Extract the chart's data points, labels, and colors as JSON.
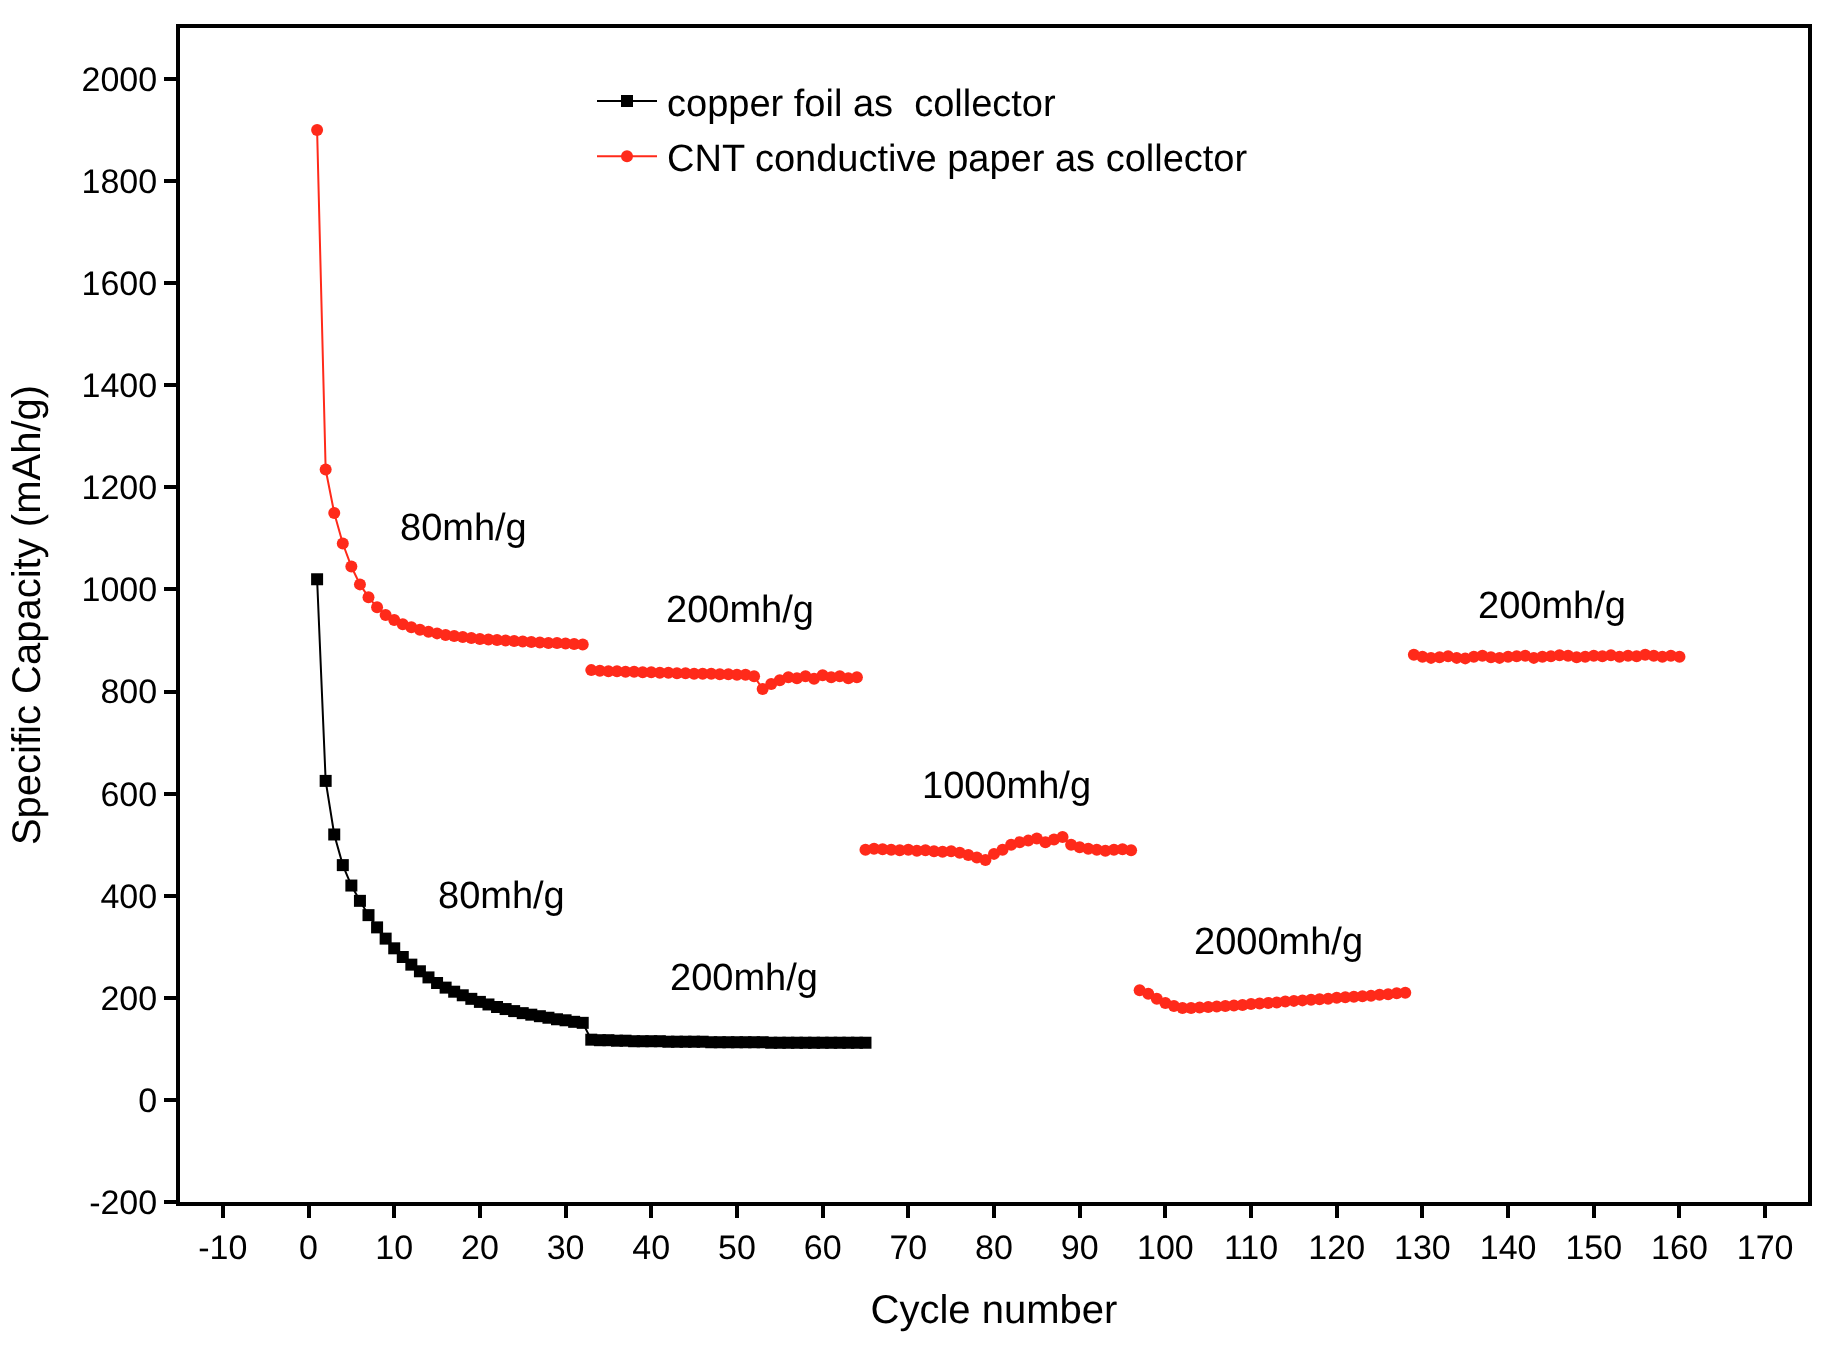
{
  "chart_data": {
    "type": "line",
    "xlabel": "Cycle number",
    "ylabel": "Specific Capacity (mAh/g)",
    "xlim": [
      -15,
      175
    ],
    "xticks": [
      -10,
      0,
      10,
      20,
      30,
      40,
      50,
      60,
      70,
      80,
      90,
      100,
      110,
      120,
      130,
      140,
      150,
      160,
      170
    ],
    "ylim": [
      -200,
      2100
    ],
    "yticks": [
      -200,
      0,
      200,
      400,
      600,
      800,
      1000,
      1200,
      1400,
      1600,
      1800,
      2000
    ],
    "legend": "top",
    "series": [
      {
        "name": "copper foil as  collector",
        "color": "#000000",
        "marker": "square",
        "x": [
          1,
          2,
          3,
          4,
          5,
          6,
          7,
          8,
          9,
          10,
          11,
          12,
          13,
          14,
          15,
          16,
          17,
          18,
          19,
          20,
          21,
          22,
          23,
          24,
          25,
          26,
          27,
          28,
          29,
          30,
          31,
          32,
          33,
          34,
          35,
          36,
          37,
          38,
          39,
          40,
          41,
          42,
          43,
          44,
          45,
          46,
          47,
          48,
          49,
          50,
          51,
          52,
          53,
          54,
          55,
          56,
          57,
          58,
          59,
          60,
          61,
          62,
          63,
          64,
          65
        ],
        "values": [
          1020,
          625,
          520,
          460,
          420,
          390,
          362,
          338,
          316,
          297,
          280,
          265,
          252,
          240,
          229,
          220,
          212,
          205,
          198,
          192,
          187,
          182,
          178,
          174,
          170,
          167,
          164,
          161,
          158,
          156,
          153,
          151,
          118,
          117,
          117,
          116,
          116,
          115,
          115,
          115,
          115,
          114,
          114,
          114,
          114,
          114,
          113,
          113,
          113,
          113,
          113,
          113,
          113,
          112,
          112,
          112,
          112,
          112,
          112,
          112,
          112,
          112,
          112,
          112,
          112
        ]
      },
      {
        "name": "CNT conductive paper as collector",
        "color": "#ff2a1a",
        "marker": "circle",
        "x": [
          1,
          2,
          3,
          4,
          5,
          6,
          7,
          8,
          9,
          10,
          11,
          12,
          13,
          14,
          15,
          16,
          17,
          18,
          19,
          20,
          21,
          22,
          23,
          24,
          25,
          26,
          27,
          28,
          29,
          30,
          31,
          32,
          32.5,
          33,
          34,
          35,
          36,
          37,
          38,
          39,
          40,
          41,
          42,
          43,
          44,
          45,
          46,
          47,
          48,
          49,
          50,
          51,
          52,
          53,
          54,
          55,
          56,
          57,
          58,
          59,
          60,
          61,
          62,
          63,
          64,
          64.5,
          65,
          66,
          67,
          68,
          69,
          70,
          71,
          72,
          73,
          74,
          75,
          76,
          77,
          78,
          79,
          80,
          81,
          82,
          83,
          84,
          85,
          86,
          87,
          88,
          89,
          90,
          91,
          92,
          93,
          94,
          95,
          96,
          96.5,
          97,
          98,
          99,
          100,
          101,
          102,
          103,
          104,
          105,
          106,
          107,
          108,
          109,
          110,
          111,
          112,
          113,
          114,
          115,
          116,
          117,
          118,
          119,
          120,
          121,
          122,
          123,
          124,
          125,
          126,
          127,
          128,
          128.5,
          129,
          130,
          131,
          132,
          133,
          134,
          135,
          136,
          137,
          138,
          139,
          140,
          141,
          142,
          143,
          144,
          145,
          146,
          147,
          148,
          149,
          150,
          151,
          152,
          153,
          154,
          155,
          156,
          157,
          158,
          159,
          160
        ],
        "values": [
          1900,
          1235,
          1150,
          1090,
          1045,
          1010,
          985,
          965,
          950,
          940,
          932,
          926,
          921,
          917,
          914,
          911,
          909,
          907,
          905,
          903,
          902,
          901,
          900,
          899,
          898,
          897,
          896,
          895,
          895,
          894,
          893,
          892,
          null,
          842,
          841,
          840,
          840,
          839,
          839,
          838,
          838,
          837,
          837,
          836,
          836,
          835,
          835,
          835,
          834,
          834,
          833,
          833,
          830,
          805,
          815,
          822,
          828,
          826,
          830,
          825,
          832,
          828,
          830,
          826,
          828,
          null,
          490,
          492,
          491,
          490,
          489,
          490,
          488,
          489,
          487,
          486,
          487,
          484,
          480,
          475,
          470,
          482,
          490,
          500,
          505,
          508,
          512,
          505,
          510,
          515,
          500,
          495,
          492,
          490,
          488,
          490,
          491,
          489,
          null,
          215,
          208,
          198,
          190,
          184,
          180,
          180,
          181,
          182,
          183,
          184,
          185,
          186,
          188,
          189,
          190,
          191,
          193,
          194,
          195,
          196,
          197,
          198,
          200,
          201,
          202,
          203,
          204,
          206,
          207,
          209,
          210,
          null,
          872,
          868,
          866,
          867,
          869,
          866,
          865,
          868,
          870,
          867,
          866,
          868,
          869,
          870,
          866,
          868,
          869,
          871,
          870,
          867,
          868,
          870,
          869,
          871,
          868,
          870,
          869,
          872,
          870,
          868,
          870,
          868
        ]
      }
    ],
    "annotations": [
      "80mh/g",
      "200mh/g",
      "80mh/g",
      "200mh/g",
      "1000mh/g",
      "2000mh/g",
      "200mh/g"
    ]
  }
}
